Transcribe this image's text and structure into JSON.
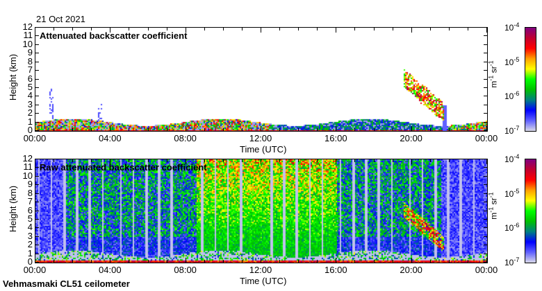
{
  "date": "21 Oct 2021",
  "footer": "Vehmasmaki CL51 ceilometer",
  "chart_data": [
    {
      "type": "heatmap",
      "title": "Attenuated backscatter coefficient",
      "xlabel": "Time (UTC)",
      "ylabel": "Height (km)",
      "xlim": [
        0,
        24
      ],
      "ylim": [
        0,
        12
      ],
      "x_tick_labels": [
        "00:00",
        "04:00",
        "08:00",
        "12:00",
        "16:00",
        "20:00",
        "00:00"
      ],
      "y_tick_labels": [
        "0",
        "1",
        "2",
        "3",
        "4",
        "5",
        "6",
        "7",
        "8",
        "9",
        "10",
        "11",
        "12"
      ],
      "colorbar": {
        "label": "m-1 sr-1",
        "label_base": "m",
        "label_exp1": "-1",
        "label_mid": " sr",
        "label_exp2": "-1",
        "scale": "log",
        "range": [
          1e-07,
          0.0001
        ],
        "tick_base": "10",
        "tick_exps": [
          "-7",
          "-6",
          "-5",
          "-4"
        ]
      },
      "features": [
        "boundary layer aerosol 0-1.5 km all day",
        "cloud descending from ~6 km to ~2 km between 19:30 and 21:30"
      ]
    },
    {
      "type": "heatmap",
      "title": "Raw attenuated backscatter coefficient",
      "xlabel": "Time (UTC)",
      "ylabel": "Height (km)",
      "xlim": [
        0,
        24
      ],
      "ylim": [
        0,
        12
      ],
      "x_tick_labels": [
        "00:00",
        "04:00",
        "08:00",
        "12:00",
        "16:00",
        "20:00",
        "00:00"
      ],
      "y_tick_labels": [
        "0",
        "1",
        "2",
        "3",
        "4",
        "5",
        "6",
        "7",
        "8",
        "9",
        "10",
        "11",
        "12"
      ],
      "colorbar": {
        "label": "m-1 sr-1",
        "label_base": "m",
        "label_exp1": "-1",
        "label_mid": " sr",
        "label_exp2": "-1",
        "scale": "log",
        "range": [
          1e-07,
          0.0001
        ],
        "tick_base": "10",
        "tick_exps": [
          "-7",
          "-6",
          "-5",
          "-4"
        ]
      }
    }
  ],
  "colormap": [
    "#d8d8e8",
    "#6060ff",
    "#0000ff",
    "#008080",
    "#00c000",
    "#00ff00",
    "#ffff00",
    "#ffa000",
    "#ff0000",
    "#c00030",
    "#800080"
  ]
}
